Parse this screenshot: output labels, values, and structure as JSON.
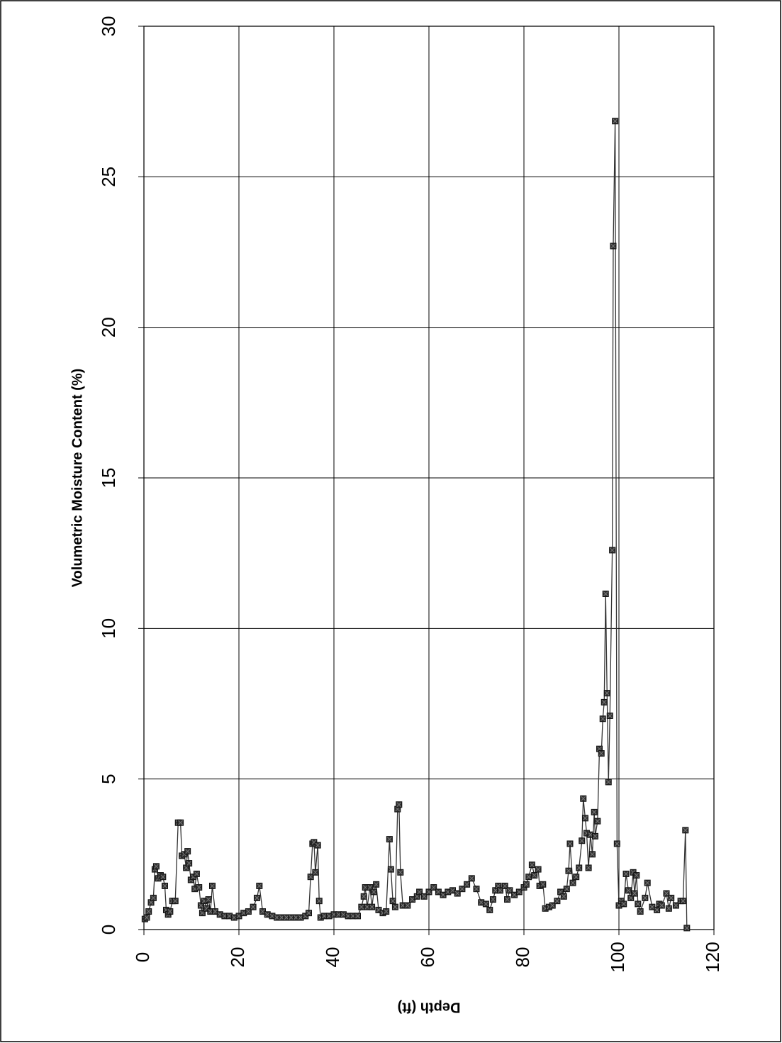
{
  "chart_data": {
    "type": "line",
    "x_label": "Depth (ft)",
    "y_label": "Volumetric Moisture Content (%)",
    "color": "#333333",
    "grid": true,
    "marker": "square",
    "xlim": [
      0,
      120
    ],
    "xticks": [
      0,
      20,
      40,
      60,
      80,
      100,
      120
    ],
    "ylim": [
      0,
      30
    ],
    "yticks": [
      0,
      5,
      10,
      15,
      20,
      25,
      30
    ],
    "x": [
      0.2,
      0.6,
      1,
      1.5,
      2,
      2.3,
      2.6,
      3,
      3.5,
      4,
      4.4,
      4.7,
      5.1,
      5.5,
      6,
      6.6,
      7.2,
      7.7,
      8,
      8.5,
      8.9,
      9.2,
      9.5,
      9.9,
      10.4,
      10.7,
      11.1,
      11.6,
      12,
      12.3,
      12.7,
      13.2,
      13.6,
      14,
      14.4,
      15,
      16,
      17,
      18,
      19,
      20,
      21,
      22,
      23,
      23.8,
      24.3,
      25,
      26,
      27,
      28,
      29,
      30,
      31,
      32,
      33,
      34,
      34.7,
      35.1,
      35.5,
      35.8,
      36.1,
      36.6,
      36.9,
      37.2,
      38,
      39,
      40,
      41,
      42,
      43,
      44,
      45,
      45.8,
      46.3,
      46.6,
      47,
      47.6,
      48,
      48.4,
      48.9,
      49.4,
      50.3,
      51,
      51.7,
      52,
      52.4,
      52.9,
      53.4,
      53.7,
      54,
      54.5,
      55.5,
      56.5,
      57.5,
      58,
      59,
      60,
      61,
      62,
      63,
      64,
      65,
      66,
      67,
      68,
      69,
      70,
      71,
      72,
      72.8,
      73.5,
      74,
      74.6,
      75,
      76,
      76.5,
      77,
      78,
      79,
      80,
      80.5,
      81,
      81.7,
      82.2,
      83,
      83.3,
      84,
      84.5,
      85.3,
      86,
      87,
      87.7,
      88.4,
      89,
      89.4,
      89.7,
      90.3,
      91,
      91.6,
      92.2,
      92.5,
      92.9,
      93.2,
      93.6,
      94,
      94.4,
      94.8,
      95,
      95.5,
      95.9,
      96.3,
      96.6,
      96.9,
      97.2,
      97.5,
      97.8,
      98.1,
      98.6,
      98.8,
      99.2,
      99.6,
      100,
      100.5,
      101,
      101.5,
      102,
      102.5,
      103,
      103.3,
      103.7,
      104,
      104.5,
      105.5,
      106,
      107,
      108,
      108.5,
      109,
      110,
      110.5,
      111,
      112,
      113,
      113.5,
      114,
      114.3
    ],
    "values": [
      0.35,
      0.4,
      0.6,
      0.9,
      1.05,
      2.0,
      2.1,
      1.7,
      1.8,
      1.75,
      1.45,
      0.65,
      0.5,
      0.6,
      0.95,
      0.95,
      3.55,
      3.55,
      2.45,
      2.5,
      2.05,
      2.6,
      2.2,
      1.65,
      1.75,
      1.35,
      1.85,
      1.4,
      0.8,
      0.55,
      0.95,
      0.7,
      1.0,
      0.6,
      1.45,
      0.6,
      0.5,
      0.45,
      0.45,
      0.4,
      0.45,
      0.55,
      0.6,
      0.75,
      1.05,
      1.45,
      0.6,
      0.5,
      0.45,
      0.4,
      0.4,
      0.4,
      0.4,
      0.4,
      0.4,
      0.45,
      0.55,
      1.75,
      2.85,
      2.9,
      1.9,
      2.8,
      0.95,
      0.4,
      0.45,
      0.45,
      0.5,
      0.5,
      0.5,
      0.45,
      0.45,
      0.45,
      0.75,
      1.1,
      1.4,
      0.75,
      1.4,
      0.75,
      1.25,
      1.5,
      0.65,
      0.55,
      0.6,
      3.0,
      2.0,
      0.95,
      0.75,
      4.0,
      4.15,
      1.9,
      0.8,
      0.8,
      1.0,
      1.1,
      1.25,
      1.1,
      1.25,
      1.4,
      1.25,
      1.15,
      1.25,
      1.3,
      1.2,
      1.35,
      1.5,
      1.7,
      1.35,
      0.9,
      0.85,
      0.65,
      1.0,
      1.3,
      1.45,
      1.3,
      1.45,
      1.0,
      1.3,
      1.15,
      1.25,
      1.4,
      1.5,
      1.75,
      2.15,
      1.8,
      2.0,
      1.45,
      1.5,
      0.7,
      0.75,
      0.8,
      0.95,
      1.25,
      1.1,
      1.35,
      1.95,
      2.85,
      1.55,
      1.75,
      2.05,
      2.95,
      4.35,
      3.7,
      3.2,
      2.05,
      3.15,
      2.5,
      3.9,
      3.1,
      3.6,
      6.0,
      5.85,
      7.0,
      7.55,
      11.15,
      7.85,
      4.9,
      7.1,
      12.6,
      22.7,
      26.85,
      2.85,
      0.8,
      0.95,
      0.85,
      1.85,
      1.3,
      1.05,
      1.9,
      1.2,
      1.8,
      0.85,
      0.6,
      1.05,
      1.55,
      0.75,
      0.65,
      0.85,
      0.8,
      1.2,
      0.7,
      1.05,
      0.8,
      0.95,
      0.95,
      3.3,
      0.05
    ]
  }
}
